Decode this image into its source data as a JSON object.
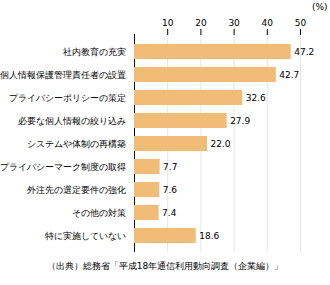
{
  "chart_data": {
    "type": "bar",
    "orientation": "horizontal",
    "categories": [
      "社内教育の充実",
      "個人情報保護管理責任者の設置",
      "プライバシーポリシーの策定",
      "必要な個人情報の絞り込み",
      "システムや体制の再構築",
      "プライバシーマーク制度の取得",
      "外注先の選定要件の強化",
      "その他の対策",
      "特に実施していない"
    ],
    "values": [
      47.2,
      42.7,
      32.6,
      27.9,
      22.0,
      7.7,
      7.6,
      7.4,
      18.6
    ],
    "value_labels": [
      "47.2",
      "42.7",
      "32.6",
      "27.9",
      "22.0",
      "7.7",
      "7.6",
      "7.4",
      "18.6"
    ],
    "data_labels": true,
    "color": "#f0bc78",
    "xlabel": "(%)",
    "xlim": [
      0,
      50
    ],
    "xticks": [
      10,
      20,
      30,
      40,
      50
    ],
    "grid": true,
    "source": "（出典）総務省「平成18年通信利用動向調査（企業編）」"
  }
}
